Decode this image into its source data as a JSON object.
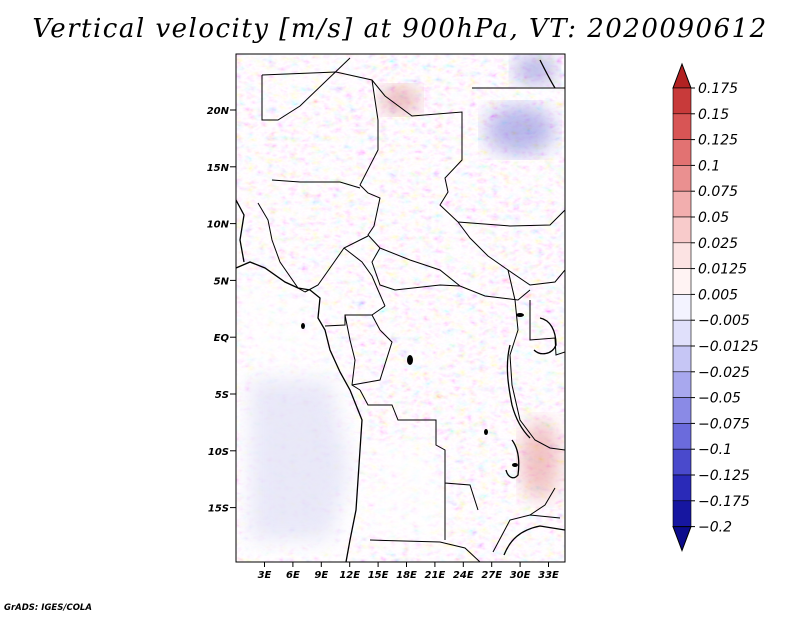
{
  "title": "Vertical velocity [m/s] at 900hPa, VT: 2020090612",
  "footer": "GrADS: IGES/COLA",
  "lat_labels": [
    "20N",
    "15N",
    "10N",
    "5N",
    "EQ",
    "5S",
    "10S",
    "15S"
  ],
  "lon_labels": [
    "3E",
    "6E",
    "9E",
    "12E",
    "15E",
    "18E",
    "21E",
    "24E",
    "27E",
    "30E",
    "33E"
  ],
  "colorbar": {
    "units": "m/s",
    "labels": [
      "0.175",
      "0.15",
      "0.125",
      "0.1",
      "0.075",
      "0.05",
      "0.025",
      "0.0125",
      "0.005",
      "−0.005",
      "−0.0125",
      "−0.025",
      "−0.05",
      "−0.075",
      "−0.1",
      "−0.125",
      "−0.175",
      "−0.2"
    ],
    "colors": [
      "#b22222",
      "#c83a3a",
      "#d85555",
      "#e27272",
      "#ea9090",
      "#f2aeae",
      "#f8cbcb",
      "#fce3e3",
      "#fff3f3",
      "#f3f3ff",
      "#e0e0fb",
      "#c6c6f5",
      "#a8a8ee",
      "#8a8ae6",
      "#6b6bdc",
      "#4a4acc",
      "#2a2ab8",
      "#1616a0",
      "#0c0c8c"
    ]
  }
}
